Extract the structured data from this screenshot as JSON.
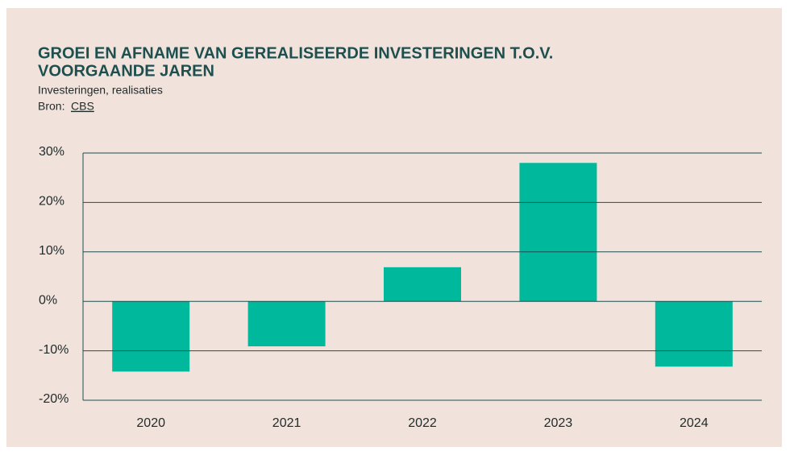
{
  "chart_data": {
    "type": "bar",
    "title": [
      "GROEI EN AFNAME VAN GEREALISEERDE INVESTERINGEN T.O.V.",
      "VOORGAANDE JAREN"
    ],
    "subtitle": "Investeringen, realisaties",
    "source": {
      "label": "Bron:",
      "link": "CBS"
    },
    "categories": [
      "2020",
      "2021",
      "2022",
      "2023",
      "2024"
    ],
    "values": [
      -14.2,
      -9.1,
      6.9,
      28,
      -13.2
    ],
    "color": "#00b89b",
    "ylim": [
      -20,
      30
    ],
    "yticks": [
      {
        "value": -20,
        "label": "-20%"
      },
      {
        "value": -10,
        "label": "-10%"
      },
      {
        "value": 0,
        "label": "0%"
      },
      {
        "value": 10,
        "label": "10%"
      },
      {
        "value": 20,
        "label": "20%"
      },
      {
        "value": 30,
        "label": "30%"
      }
    ],
    "grid": true
  }
}
